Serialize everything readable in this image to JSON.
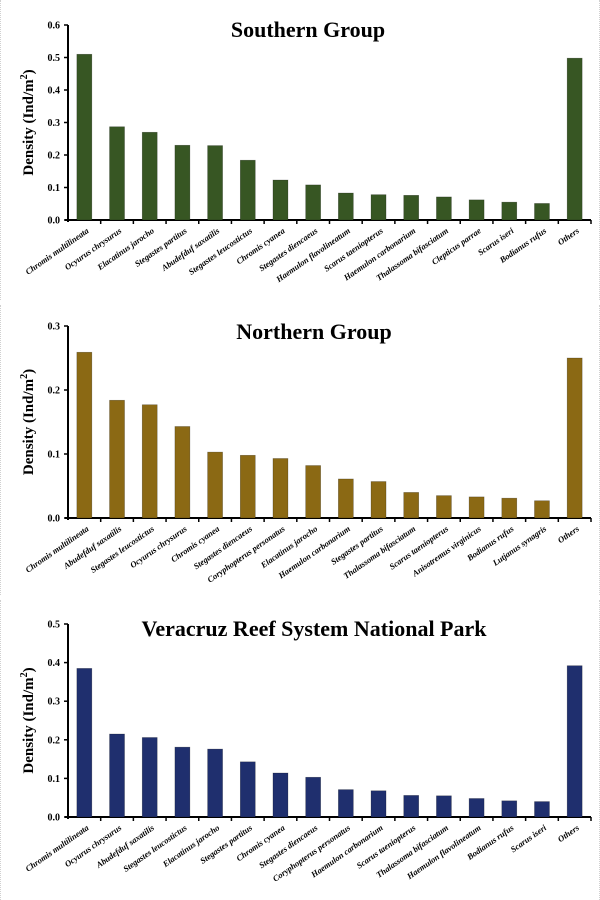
{
  "chart_data": [
    {
      "type": "bar",
      "title": "Southern Group",
      "xlabel": "",
      "ylabel": "Density (Ind/m²)",
      "ylim": [
        0,
        0.6
      ],
      "yticks": [
        "0.0",
        "0.1",
        "0.2",
        "0.3",
        "0.4",
        "0.5",
        "0.6"
      ],
      "grid": false,
      "color": "#375623",
      "categories": [
        "Chromis multilineata",
        "Ocyurus chrysurus",
        "Elacatinus jarocho",
        "Stegastes partitus",
        "Abudefduf saxatilis",
        "Stegastes leucostictus",
        "Chromis cyanea",
        "Stegastes diencaeus",
        "Haemulon flavolineatum",
        "Scarus taeniopterus",
        "Haemulon carbonarium",
        "Thalassoma bifasciatum",
        "Clepticus parrae",
        "Scarus iseri",
        "Bodianus rufus",
        "Others"
      ],
      "values": [
        0.51,
        0.287,
        0.27,
        0.23,
        0.229,
        0.184,
        0.123,
        0.108,
        0.083,
        0.078,
        0.076,
        0.071,
        0.062,
        0.055,
        0.051,
        0.498
      ]
    },
    {
      "type": "bar",
      "title": "Northern Group",
      "xlabel": "",
      "ylabel": "Density (Ind/m²)",
      "ylim": [
        0,
        0.3
      ],
      "yticks": [
        "0.0",
        "0.1",
        "0.2",
        "0.3"
      ],
      "grid": false,
      "color": "#8B6914",
      "categories": [
        "Chromis multilineata",
        "Abudefduf saxatilis",
        "Stegastes leucostictus",
        "Ocyurus chrysurus",
        "Chromis cyanea",
        "Stegastes diencaeus",
        "Coryphopterus personatus",
        "Elacatinus jarocho",
        "Haemulon carbonarium",
        "Stegastes partitus",
        "Thalassoma bifasciatum",
        "Scarus taeniopterus",
        "Anisotremus virginicus",
        "Bodianus rufus",
        "Lutjanus synagris",
        "Others"
      ],
      "values": [
        0.259,
        0.184,
        0.177,
        0.143,
        0.103,
        0.098,
        0.093,
        0.082,
        0.061,
        0.057,
        0.04,
        0.035,
        0.033,
        0.031,
        0.027,
        0.25
      ]
    },
    {
      "type": "bar",
      "title": "Veracruz Reef System National Park",
      "xlabel": "",
      "ylabel": "Density (Ind/m²)",
      "ylim": [
        0,
        0.5
      ],
      "yticks": [
        "0.0",
        "0.1",
        "0.2",
        "0.3",
        "0.4",
        "0.5"
      ],
      "grid": false,
      "color": "#1F2F6E",
      "categories": [
        "Chromis multilineata",
        "Ocyurus chrysurus",
        "Abudefduf saxatilis",
        "Stegastes leucostictus",
        "Elacatinus jarocho",
        "Stegastes partitus",
        "Chromis cyanea",
        "Stegastes diencaeus",
        "Coryphopterus personatus",
        "Haemulon carbonarium",
        "Scarus taeniopterus",
        "Thalassoma bifasciatum",
        "Haemulon flavolineatum",
        "Bodianus rufus",
        "Scarus iseri",
        "Others"
      ],
      "values": [
        0.385,
        0.215,
        0.206,
        0.181,
        0.176,
        0.143,
        0.114,
        0.103,
        0.071,
        0.068,
        0.056,
        0.055,
        0.048,
        0.042,
        0.04,
        0.392
      ]
    }
  ],
  "panels": [
    {
      "title": "Southern Group",
      "ylabel_main": "Density (Ind/m",
      "ylabel_sup": "2",
      "ylabel_end": ")"
    },
    {
      "title": "Northern Group",
      "ylabel_main": "Density (Ind/m",
      "ylabel_sup": "2",
      "ylabel_end": ")"
    },
    {
      "title": "Veracruz Reef System National Park",
      "ylabel_main": "Density (Ind/m",
      "ylabel_sup": "2",
      "ylabel_end": ")"
    }
  ]
}
